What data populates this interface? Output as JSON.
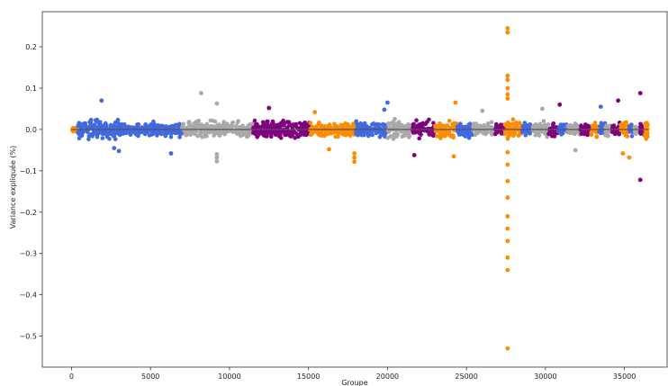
{
  "chart_data": {
    "type": "scatter",
    "title": "",
    "xlabel": "Groupe",
    "ylabel": "Variance expliquée (%)",
    "xlim": [
      -1850,
      37700
    ],
    "ylim": [
      -0.575,
      0.285
    ],
    "xticks": [
      0,
      5000,
      10000,
      15000,
      20000,
      25000,
      30000,
      35000
    ],
    "yticks": [
      -0.5,
      -0.4,
      -0.3,
      -0.2,
      -0.1,
      0.0,
      0.1,
      0.2
    ],
    "grid": false,
    "legend": "none",
    "center_line": {
      "y": 0.0,
      "color": "#555555"
    },
    "group_bands": [
      {
        "start": 0,
        "end": 400,
        "color": "#ff8c00",
        "spread": 0.01
      },
      {
        "start": 400,
        "end": 3000,
        "color": "#4169e1",
        "spread": 0.035
      },
      {
        "start": 3000,
        "end": 4200,
        "color": "#4169e1",
        "spread": 0.02
      },
      {
        "start": 4200,
        "end": 7000,
        "color": "#4169e1",
        "spread": 0.025
      },
      {
        "start": 7000,
        "end": 11500,
        "color": "#a9a9a9",
        "spread": 0.03
      },
      {
        "start": 11500,
        "end": 15100,
        "color": "#800080",
        "spread": 0.03
      },
      {
        "start": 15100,
        "end": 18000,
        "color": "#ff8c00",
        "spread": 0.03
      },
      {
        "start": 18000,
        "end": 20000,
        "color": "#4169e1",
        "spread": 0.03
      },
      {
        "start": 20000,
        "end": 21600,
        "color": "#a9a9a9",
        "spread": 0.03
      },
      {
        "start": 21600,
        "end": 23000,
        "color": "#800080",
        "spread": 0.03
      },
      {
        "start": 23000,
        "end": 24400,
        "color": "#ff8c00",
        "spread": 0.03
      },
      {
        "start": 24400,
        "end": 25400,
        "color": "#4169e1",
        "spread": 0.03
      },
      {
        "start": 25400,
        "end": 26800,
        "color": "#a9a9a9",
        "spread": 0.025
      },
      {
        "start": 26800,
        "end": 27400,
        "color": "#800080",
        "spread": 0.025
      },
      {
        "start": 27400,
        "end": 28500,
        "color": "#ff8c00",
        "spread": 0.03
      },
      {
        "start": 28500,
        "end": 29200,
        "color": "#4169e1",
        "spread": 0.025
      },
      {
        "start": 29200,
        "end": 30200,
        "color": "#a9a9a9",
        "spread": 0.025
      },
      {
        "start": 30200,
        "end": 30800,
        "color": "#800080",
        "spread": 0.025
      },
      {
        "start": 30800,
        "end": 31400,
        "color": "#4169e1",
        "spread": 0.025
      },
      {
        "start": 31400,
        "end": 32200,
        "color": "#a9a9a9",
        "spread": 0.025
      },
      {
        "start": 32200,
        "end": 32900,
        "color": "#800080",
        "spread": 0.025
      },
      {
        "start": 32900,
        "end": 33400,
        "color": "#ff8c00",
        "spread": 0.025
      },
      {
        "start": 33400,
        "end": 33800,
        "color": "#4169e1",
        "spread": 0.03
      },
      {
        "start": 33800,
        "end": 34200,
        "color": "#a9a9a9",
        "spread": 0.025
      },
      {
        "start": 34200,
        "end": 34700,
        "color": "#800080",
        "spread": 0.025
      },
      {
        "start": 34700,
        "end": 35300,
        "color": "#ff8c00",
        "spread": 0.03
      },
      {
        "start": 35300,
        "end": 35600,
        "color": "#4169e1",
        "spread": 0.025
      },
      {
        "start": 35600,
        "end": 36000,
        "color": "#a9a9a9",
        "spread": 0.02
      },
      {
        "start": 36000,
        "end": 36300,
        "color": "#800080",
        "spread": 0.03
      },
      {
        "start": 36300,
        "end": 36500,
        "color": "#ff8c00",
        "spread": 0.03
      }
    ],
    "outliers": [
      {
        "x": 27600,
        "y": 0.245,
        "color": "#ff8c00"
      },
      {
        "x": 27600,
        "y": 0.235,
        "color": "#ff8c00"
      },
      {
        "x": 27600,
        "y": 0.13,
        "color": "#ff8c00"
      },
      {
        "x": 27600,
        "y": 0.12,
        "color": "#ff8c00"
      },
      {
        "x": 27600,
        "y": 0.1,
        "color": "#ff8c00"
      },
      {
        "x": 27600,
        "y": 0.085,
        "color": "#ff8c00"
      },
      {
        "x": 27600,
        "y": 0.075,
        "color": "#ff8c00"
      },
      {
        "x": 27600,
        "y": -0.055,
        "color": "#ff8c00"
      },
      {
        "x": 27600,
        "y": -0.085,
        "color": "#ff8c00"
      },
      {
        "x": 27600,
        "y": -0.125,
        "color": "#ff8c00"
      },
      {
        "x": 27600,
        "y": -0.165,
        "color": "#ff8c00"
      },
      {
        "x": 27600,
        "y": -0.21,
        "color": "#ff8c00"
      },
      {
        "x": 27600,
        "y": -0.24,
        "color": "#ff8c00"
      },
      {
        "x": 27600,
        "y": -0.27,
        "color": "#ff8c00"
      },
      {
        "x": 27600,
        "y": -0.31,
        "color": "#ff8c00"
      },
      {
        "x": 27600,
        "y": -0.34,
        "color": "#ff8c00"
      },
      {
        "x": 27600,
        "y": -0.53,
        "color": "#ff8c00"
      },
      {
        "x": 36000,
        "y": -0.122,
        "color": "#800080"
      },
      {
        "x": 36000,
        "y": 0.088,
        "color": "#800080"
      },
      {
        "x": 9200,
        "y": -0.077,
        "color": "#a9a9a9"
      },
      {
        "x": 9200,
        "y": -0.068,
        "color": "#a9a9a9"
      },
      {
        "x": 9200,
        "y": -0.06,
        "color": "#a9a9a9"
      },
      {
        "x": 8200,
        "y": 0.088,
        "color": "#a9a9a9"
      },
      {
        "x": 9200,
        "y": 0.063,
        "color": "#a9a9a9"
      },
      {
        "x": 17900,
        "y": -0.078,
        "color": "#ff8c00"
      },
      {
        "x": 17900,
        "y": -0.068,
        "color": "#ff8c00"
      },
      {
        "x": 17900,
        "y": -0.058,
        "color": "#ff8c00"
      },
      {
        "x": 6300,
        "y": -0.058,
        "color": "#4169e1"
      },
      {
        "x": 1900,
        "y": 0.07,
        "color": "#4169e1"
      },
      {
        "x": 20000,
        "y": 0.065,
        "color": "#4169e1"
      },
      {
        "x": 24300,
        "y": 0.065,
        "color": "#ff8c00"
      },
      {
        "x": 24200,
        "y": -0.065,
        "color": "#ff8c00"
      },
      {
        "x": 21700,
        "y": -0.062,
        "color": "#800080"
      },
      {
        "x": 33500,
        "y": 0.055,
        "color": "#4169e1"
      },
      {
        "x": 34600,
        "y": 0.07,
        "color": "#800080"
      },
      {
        "x": 35300,
        "y": -0.068,
        "color": "#ff8c00"
      },
      {
        "x": 34900,
        "y": -0.058,
        "color": "#ff8c00"
      },
      {
        "x": 30900,
        "y": 0.06,
        "color": "#800080"
      },
      {
        "x": 29800,
        "y": 0.05,
        "color": "#a9a9a9"
      },
      {
        "x": 31900,
        "y": -0.05,
        "color": "#a9a9a9"
      },
      {
        "x": 12500,
        "y": 0.052,
        "color": "#800080"
      },
      {
        "x": 15400,
        "y": 0.042,
        "color": "#ff8c00"
      },
      {
        "x": 16300,
        "y": -0.048,
        "color": "#ff8c00"
      },
      {
        "x": 2700,
        "y": -0.045,
        "color": "#4169e1"
      },
      {
        "x": 3000,
        "y": -0.052,
        "color": "#4169e1"
      },
      {
        "x": 26000,
        "y": 0.045,
        "color": "#a9a9a9"
      },
      {
        "x": 19800,
        "y": 0.048,
        "color": "#4169e1"
      }
    ]
  }
}
